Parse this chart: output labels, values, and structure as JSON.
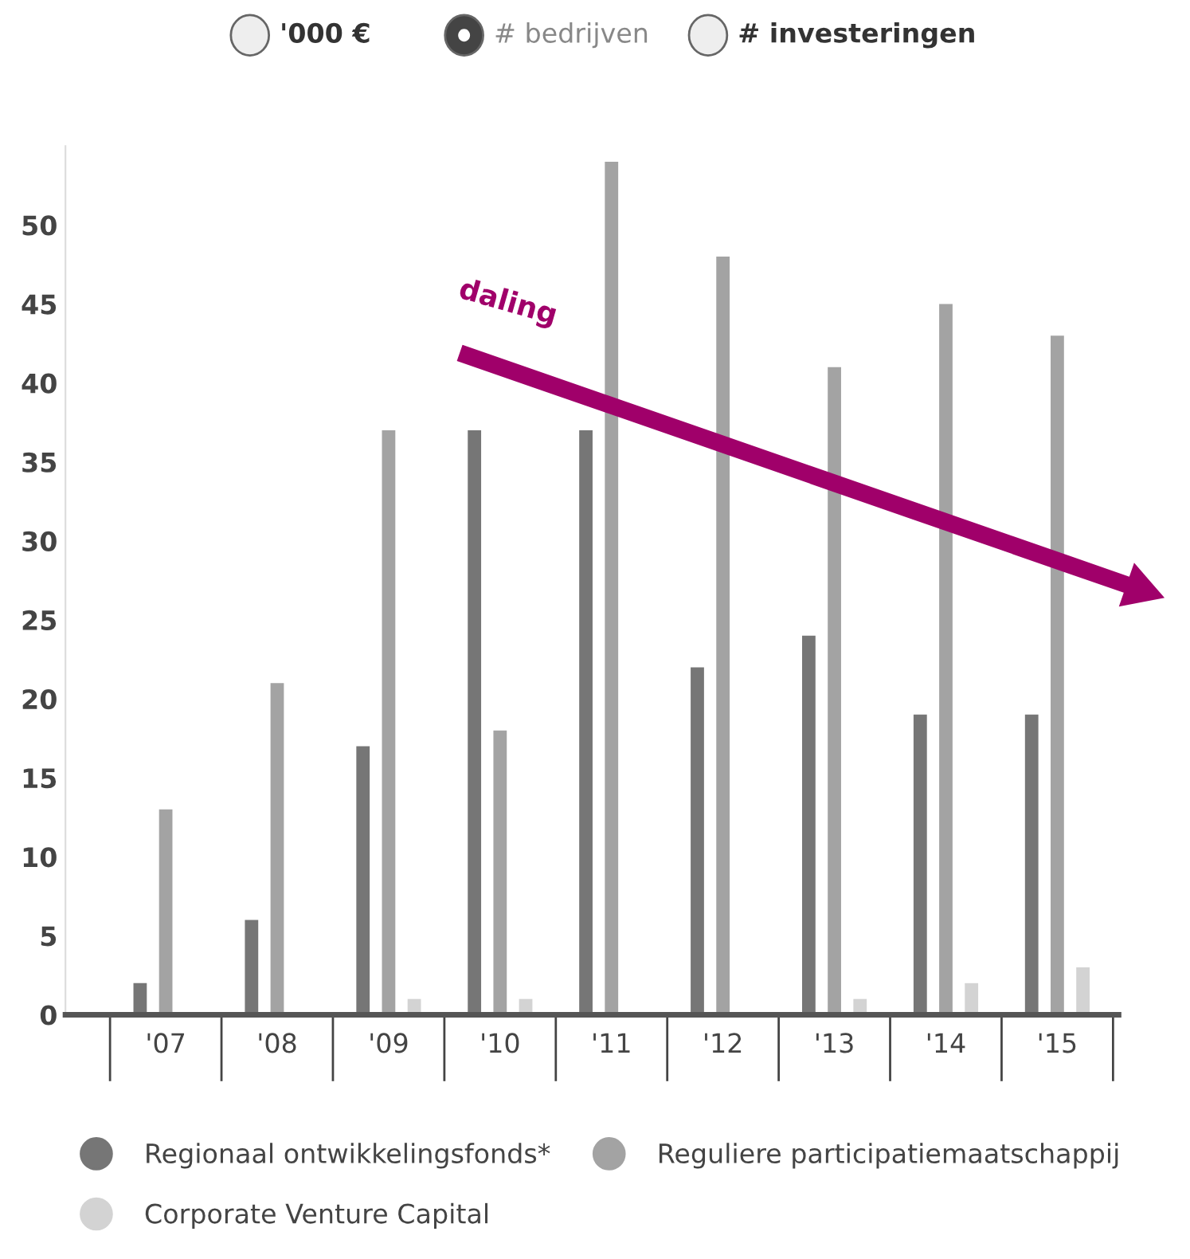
{
  "chart_data": {
    "type": "bar",
    "categories": [
      "'07",
      "'08",
      "'09",
      "'10",
      "'11",
      "'12",
      "'13",
      "'14",
      "'15"
    ],
    "series": [
      {
        "name": "Regionaal ontwikkelingsfonds*",
        "color": "#767676",
        "values": [
          2,
          6,
          17,
          37,
          37,
          22,
          24,
          19,
          19
        ]
      },
      {
        "name": "Reguliere participatiemaatschappij",
        "color": "#a3a3a3",
        "values": [
          13,
          21,
          37,
          18,
          54,
          48,
          41,
          45,
          43
        ]
      },
      {
        "name": "Corporate Venture Capital",
        "color": "#d3d3d3",
        "values": [
          0,
          0,
          1,
          1,
          0,
          0,
          1,
          2,
          3
        ]
      }
    ],
    "ylim": [
      0,
      55
    ],
    "yticks": [
      0,
      5,
      10,
      15,
      20,
      25,
      30,
      35,
      40,
      45,
      50
    ],
    "annotations": [
      "'000 €",
      "# bedrijven",
      "# investeringen",
      "daling"
    ],
    "legend": "bottom",
    "grid": false
  }
}
